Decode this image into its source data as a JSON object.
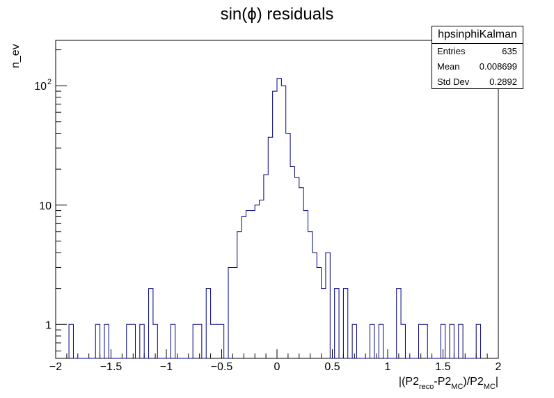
{
  "chart_data": {
    "type": "histogram",
    "title": "sin(ϕ) residuals",
    "ylabel": "n_ev",
    "xlabel": {
      "text_a": "|(P2",
      "sub_a": "reco",
      "text_b": "-P2",
      "sub_b": "MC",
      "text_c": ")/P2",
      "sub_c": "MC",
      "text_d": "|"
    },
    "xlim": [
      -2,
      2
    ],
    "ylim": [
      0.52,
      240
    ],
    "y_scale": "log",
    "x_ticks": [
      -2,
      -1.5,
      -1,
      -0.5,
      0,
      0.5,
      1,
      1.5,
      2
    ],
    "x_tick_labels": [
      "−2",
      "−1.5",
      "−1",
      "−0.5",
      "0",
      "0.5",
      "1",
      "1.5",
      "2"
    ],
    "y_major_ticks": [
      1,
      10,
      100
    ],
    "y_tick_labels": [
      {
        "value": 1,
        "base": "1",
        "exp": ""
      },
      {
        "value": 10,
        "base": "10",
        "exp": ""
      },
      {
        "value": 100,
        "base": "10",
        "exp": "2"
      }
    ],
    "bin_width": 0.04,
    "bins": [
      [
        -1.88,
        1
      ],
      [
        -1.64,
        1
      ],
      [
        -1.56,
        1
      ],
      [
        -1.36,
        1
      ],
      [
        -1.32,
        1
      ],
      [
        -1.24,
        1
      ],
      [
        -1.16,
        2
      ],
      [
        -1.12,
        1
      ],
      [
        -0.96,
        1
      ],
      [
        -0.76,
        1
      ],
      [
        -0.72,
        1
      ],
      [
        -0.64,
        2
      ],
      [
        -0.6,
        1
      ],
      [
        -0.56,
        1
      ],
      [
        -0.52,
        1
      ],
      [
        -0.44,
        3
      ],
      [
        -0.4,
        3
      ],
      [
        -0.36,
        6
      ],
      [
        -0.32,
        8
      ],
      [
        -0.28,
        9
      ],
      [
        -0.24,
        9
      ],
      [
        -0.2,
        10
      ],
      [
        -0.16,
        11
      ],
      [
        -0.12,
        18
      ],
      [
        -0.08,
        37
      ],
      [
        -0.04,
        90
      ],
      [
        0.0,
        115
      ],
      [
        0.04,
        100
      ],
      [
        0.08,
        40
      ],
      [
        0.12,
        21
      ],
      [
        0.16,
        17
      ],
      [
        0.2,
        14
      ],
      [
        0.24,
        9
      ],
      [
        0.28,
        6
      ],
      [
        0.32,
        4
      ],
      [
        0.36,
        3
      ],
      [
        0.4,
        2
      ],
      [
        0.44,
        4
      ],
      [
        0.52,
        2
      ],
      [
        0.6,
        2
      ],
      [
        0.68,
        1
      ],
      [
        0.84,
        1
      ],
      [
        0.92,
        1
      ],
      [
        1.08,
        2
      ],
      [
        1.12,
        1
      ],
      [
        1.28,
        1
      ],
      [
        1.32,
        1
      ],
      [
        1.48,
        1
      ],
      [
        1.56,
        1
      ],
      [
        1.64,
        1
      ],
      [
        1.8,
        1
      ]
    ],
    "line_color": "#000080",
    "stats": {
      "name": "hpsinphiKalman",
      "rows": [
        {
          "label": "Entries",
          "value": "635"
        },
        {
          "label": "Mean",
          "value": "0.008699"
        },
        {
          "label": "Std Dev",
          "value": "0.2892"
        }
      ]
    }
  }
}
